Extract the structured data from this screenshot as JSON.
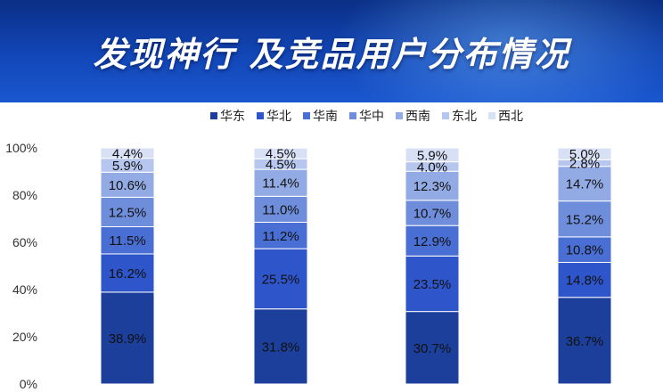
{
  "header": {
    "title": "发现神行 及竞品用户分布情况"
  },
  "chart_data": {
    "type": "bar",
    "stacked": true,
    "categories": [
      "",
      "",
      "",
      ""
    ],
    "ylim": [
      0,
      100
    ],
    "yticks": [
      "0%",
      "20%",
      "40%",
      "60%",
      "80%",
      "100%"
    ],
    "legend_position": "top",
    "grid": false,
    "series": [
      {
        "name": "华东",
        "color": "#1b3f9b",
        "values": [
          38.9,
          31.8,
          30.7,
          36.7
        ],
        "labels": [
          "38.9%",
          "31.8%",
          "30.7%",
          "36.7%"
        ]
      },
      {
        "name": "华北",
        "color": "#2e55c9",
        "values": [
          16.2,
          25.5,
          23.5,
          14.8
        ],
        "labels": [
          "16.2%",
          "25.5%",
          "23.5%",
          "14.8%"
        ]
      },
      {
        "name": "华南",
        "color": "#4a6fd4",
        "values": [
          11.5,
          11.2,
          12.9,
          10.8
        ],
        "labels": [
          "11.5%",
          "11.2%",
          "12.9%",
          "10.8%"
        ]
      },
      {
        "name": "华中",
        "color": "#6e8ddb",
        "values": [
          12.5,
          11.0,
          10.7,
          15.2
        ],
        "labels": [
          "12.5%",
          "11.0%",
          "10.7%",
          "15.2%"
        ]
      },
      {
        "name": "西南",
        "color": "#93abe4",
        "values": [
          10.6,
          11.4,
          12.3,
          14.7
        ],
        "labels": [
          "10.6%",
          "11.4%",
          "12.3%",
          "14.7%"
        ]
      },
      {
        "name": "东北",
        "color": "#b6c6ee",
        "values": [
          5.9,
          4.5,
          4.0,
          2.8
        ],
        "labels": [
          "5.9%",
          "4.5%",
          "4.0%",
          "2.8%"
        ]
      },
      {
        "name": "西北",
        "color": "#d7e0f5",
        "values": [
          4.4,
          4.5,
          5.9,
          5.0
        ],
        "labels": [
          "4.4%",
          "4.5%",
          "5.9%",
          "5.0%"
        ]
      }
    ]
  }
}
